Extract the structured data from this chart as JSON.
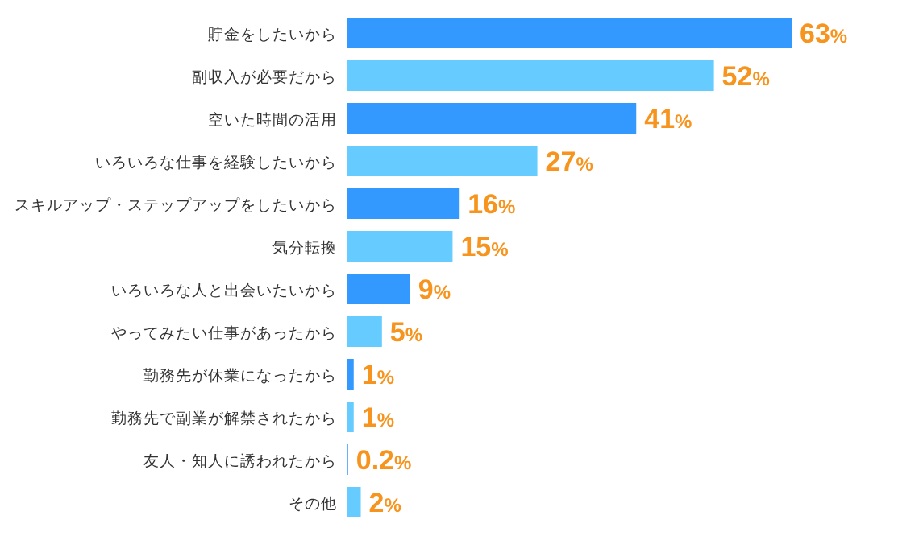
{
  "chart_data": {
    "type": "bar",
    "orientation": "horizontal",
    "categories": [
      "貯金をしたいから",
      "副収入が必要だから",
      "空いた時間の活用",
      "いろいろな仕事を経験したいから",
      "スキルアップ・ステップアップをしたいから",
      "気分転換",
      "いろいろな人と出会いたいから",
      "やってみたい仕事があったから",
      "勤務先が休業になったから",
      "勤務先で副業が解禁されたから",
      "友人・知人に誘われたから",
      "その他"
    ],
    "values": [
      63,
      52,
      41,
      27,
      16,
      15,
      9,
      5,
      1,
      1,
      0.2,
      2
    ],
    "value_labels": [
      "63%",
      "52%",
      "41%",
      "27%",
      "16%",
      "15%",
      "9%",
      "5%",
      "1%",
      "1%",
      "0.2%",
      "2%"
    ],
    "colors": [
      "#3399ff",
      "#66ccff",
      "#3399ff",
      "#66ccff",
      "#3399ff",
      "#66ccff",
      "#3399ff",
      "#66ccff",
      "#3399ff",
      "#66ccff",
      "#3399ff",
      "#66ccff"
    ]
  }
}
